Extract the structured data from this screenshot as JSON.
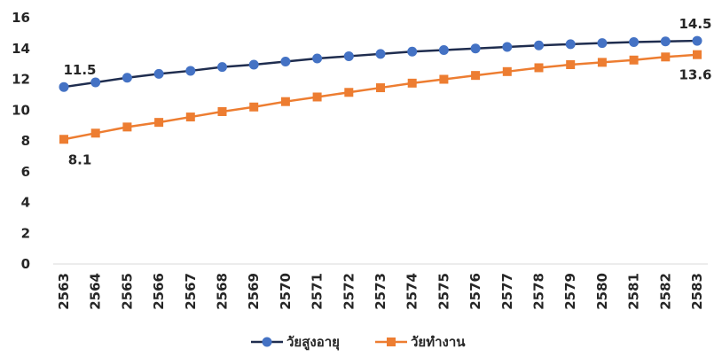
{
  "chart_data": {
    "type": "line",
    "title": "",
    "xlabel": "",
    "ylabel": "",
    "categories": [
      "2563",
      "2564",
      "2565",
      "2566",
      "2567",
      "2568",
      "2569",
      "2570",
      "2571",
      "2572",
      "2573",
      "2574",
      "2575",
      "2576",
      "2577",
      "2578",
      "2579",
      "2580",
      "2581",
      "2582",
      "2583"
    ],
    "ylim": [
      0,
      16
    ],
    "yticks": [
      0,
      2,
      4,
      6,
      8,
      10,
      12,
      14,
      16
    ],
    "grid": false,
    "legend_position": "bottom",
    "series": [
      {
        "name": "วัยสูงอายุ",
        "color": "#4472C4",
        "line_color": "#1F2D4F",
        "marker": "circle",
        "values": [
          11.5,
          11.8,
          12.1,
          12.35,
          12.55,
          12.8,
          12.95,
          13.15,
          13.35,
          13.5,
          13.65,
          13.8,
          13.9,
          14.0,
          14.1,
          14.2,
          14.28,
          14.35,
          14.42,
          14.46,
          14.5
        ]
      },
      {
        "name": "วัยทำงาน",
        "color": "#ED7D31",
        "line_color": "#ED7D31",
        "marker": "square",
        "values": [
          8.1,
          8.5,
          8.9,
          9.2,
          9.55,
          9.9,
          10.2,
          10.55,
          10.85,
          11.15,
          11.45,
          11.75,
          12.0,
          12.25,
          12.5,
          12.75,
          12.95,
          13.1,
          13.25,
          13.45,
          13.6
        ]
      }
    ],
    "data_labels": [
      {
        "series": 0,
        "index": 0,
        "text": "11.5",
        "position": "above"
      },
      {
        "series": 0,
        "index": 20,
        "text": "14.5",
        "position": "above"
      },
      {
        "series": 1,
        "index": 0,
        "text": "8.1",
        "position": "below"
      },
      {
        "series": 1,
        "index": 20,
        "text": "13.6",
        "position": "below"
      }
    ]
  }
}
